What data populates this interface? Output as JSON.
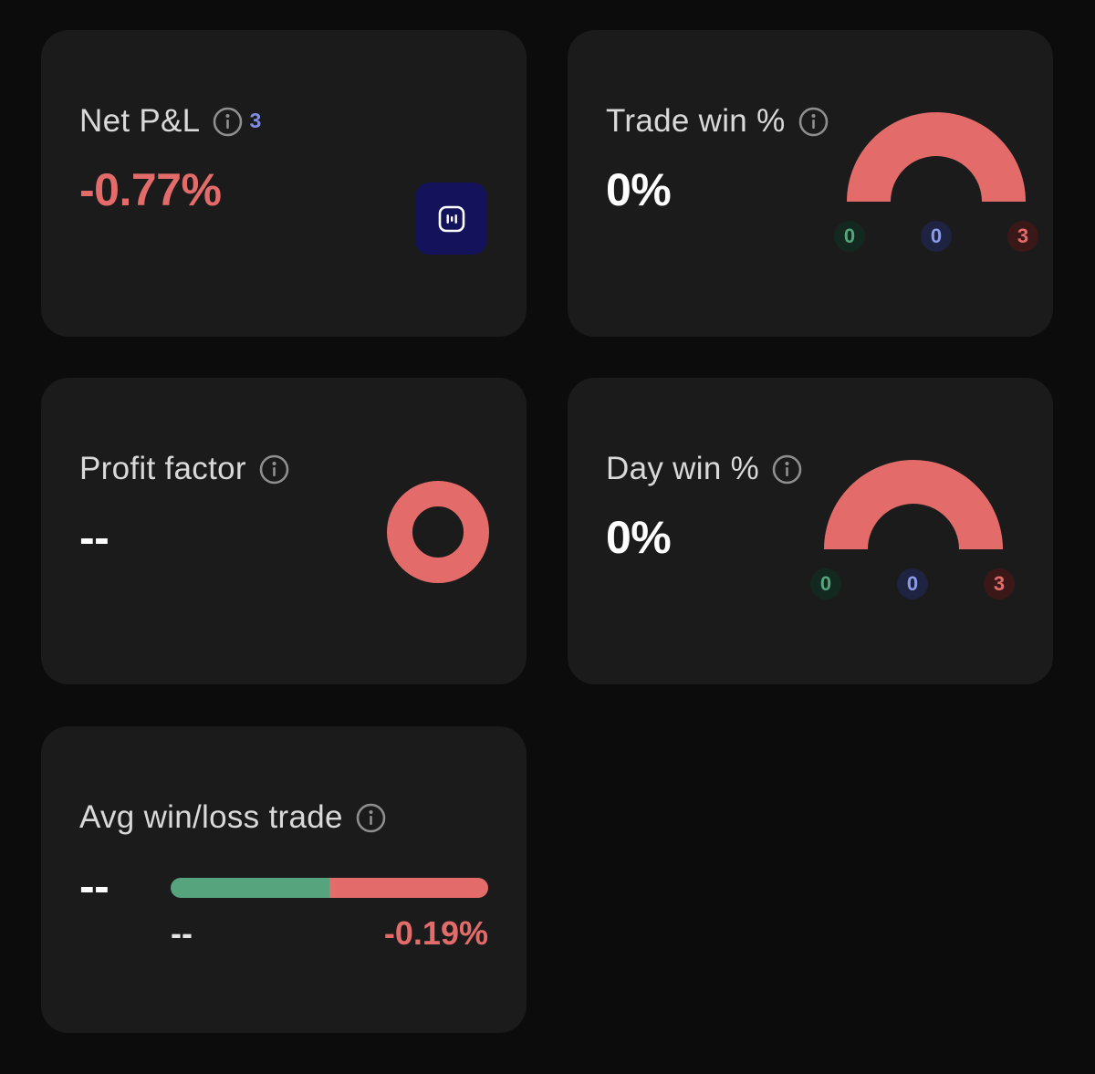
{
  "colors": {
    "loss": "#e36c6a",
    "win": "#55a47d",
    "neutral": "#8a9ce9",
    "card_bg": "#1b1b1c",
    "button_bg": "#13125a"
  },
  "net_pnl": {
    "title": "Net P&L",
    "info_icon": "info-circle-icon",
    "badge": "3",
    "value": "-0.77%",
    "button_icon": "gauge-widget-icon"
  },
  "trade_win": {
    "title": "Trade win %",
    "info_icon": "info-circle-icon",
    "value": "0%",
    "wins": "0",
    "breakeven": "0",
    "losses": "3"
  },
  "profit_factor": {
    "title": "Profit factor",
    "info_icon": "info-circle-icon",
    "value": "--"
  },
  "day_win": {
    "title": "Day win %",
    "info_icon": "info-circle-icon",
    "value": "0%",
    "wins": "0",
    "breakeven": "0",
    "losses": "3"
  },
  "avg_win_loss": {
    "title": "Avg win/loss trade",
    "info_icon": "info-circle-icon",
    "value": "--",
    "avg_win": "--",
    "avg_loss": "-0.19%",
    "win_share": 0.5
  }
}
